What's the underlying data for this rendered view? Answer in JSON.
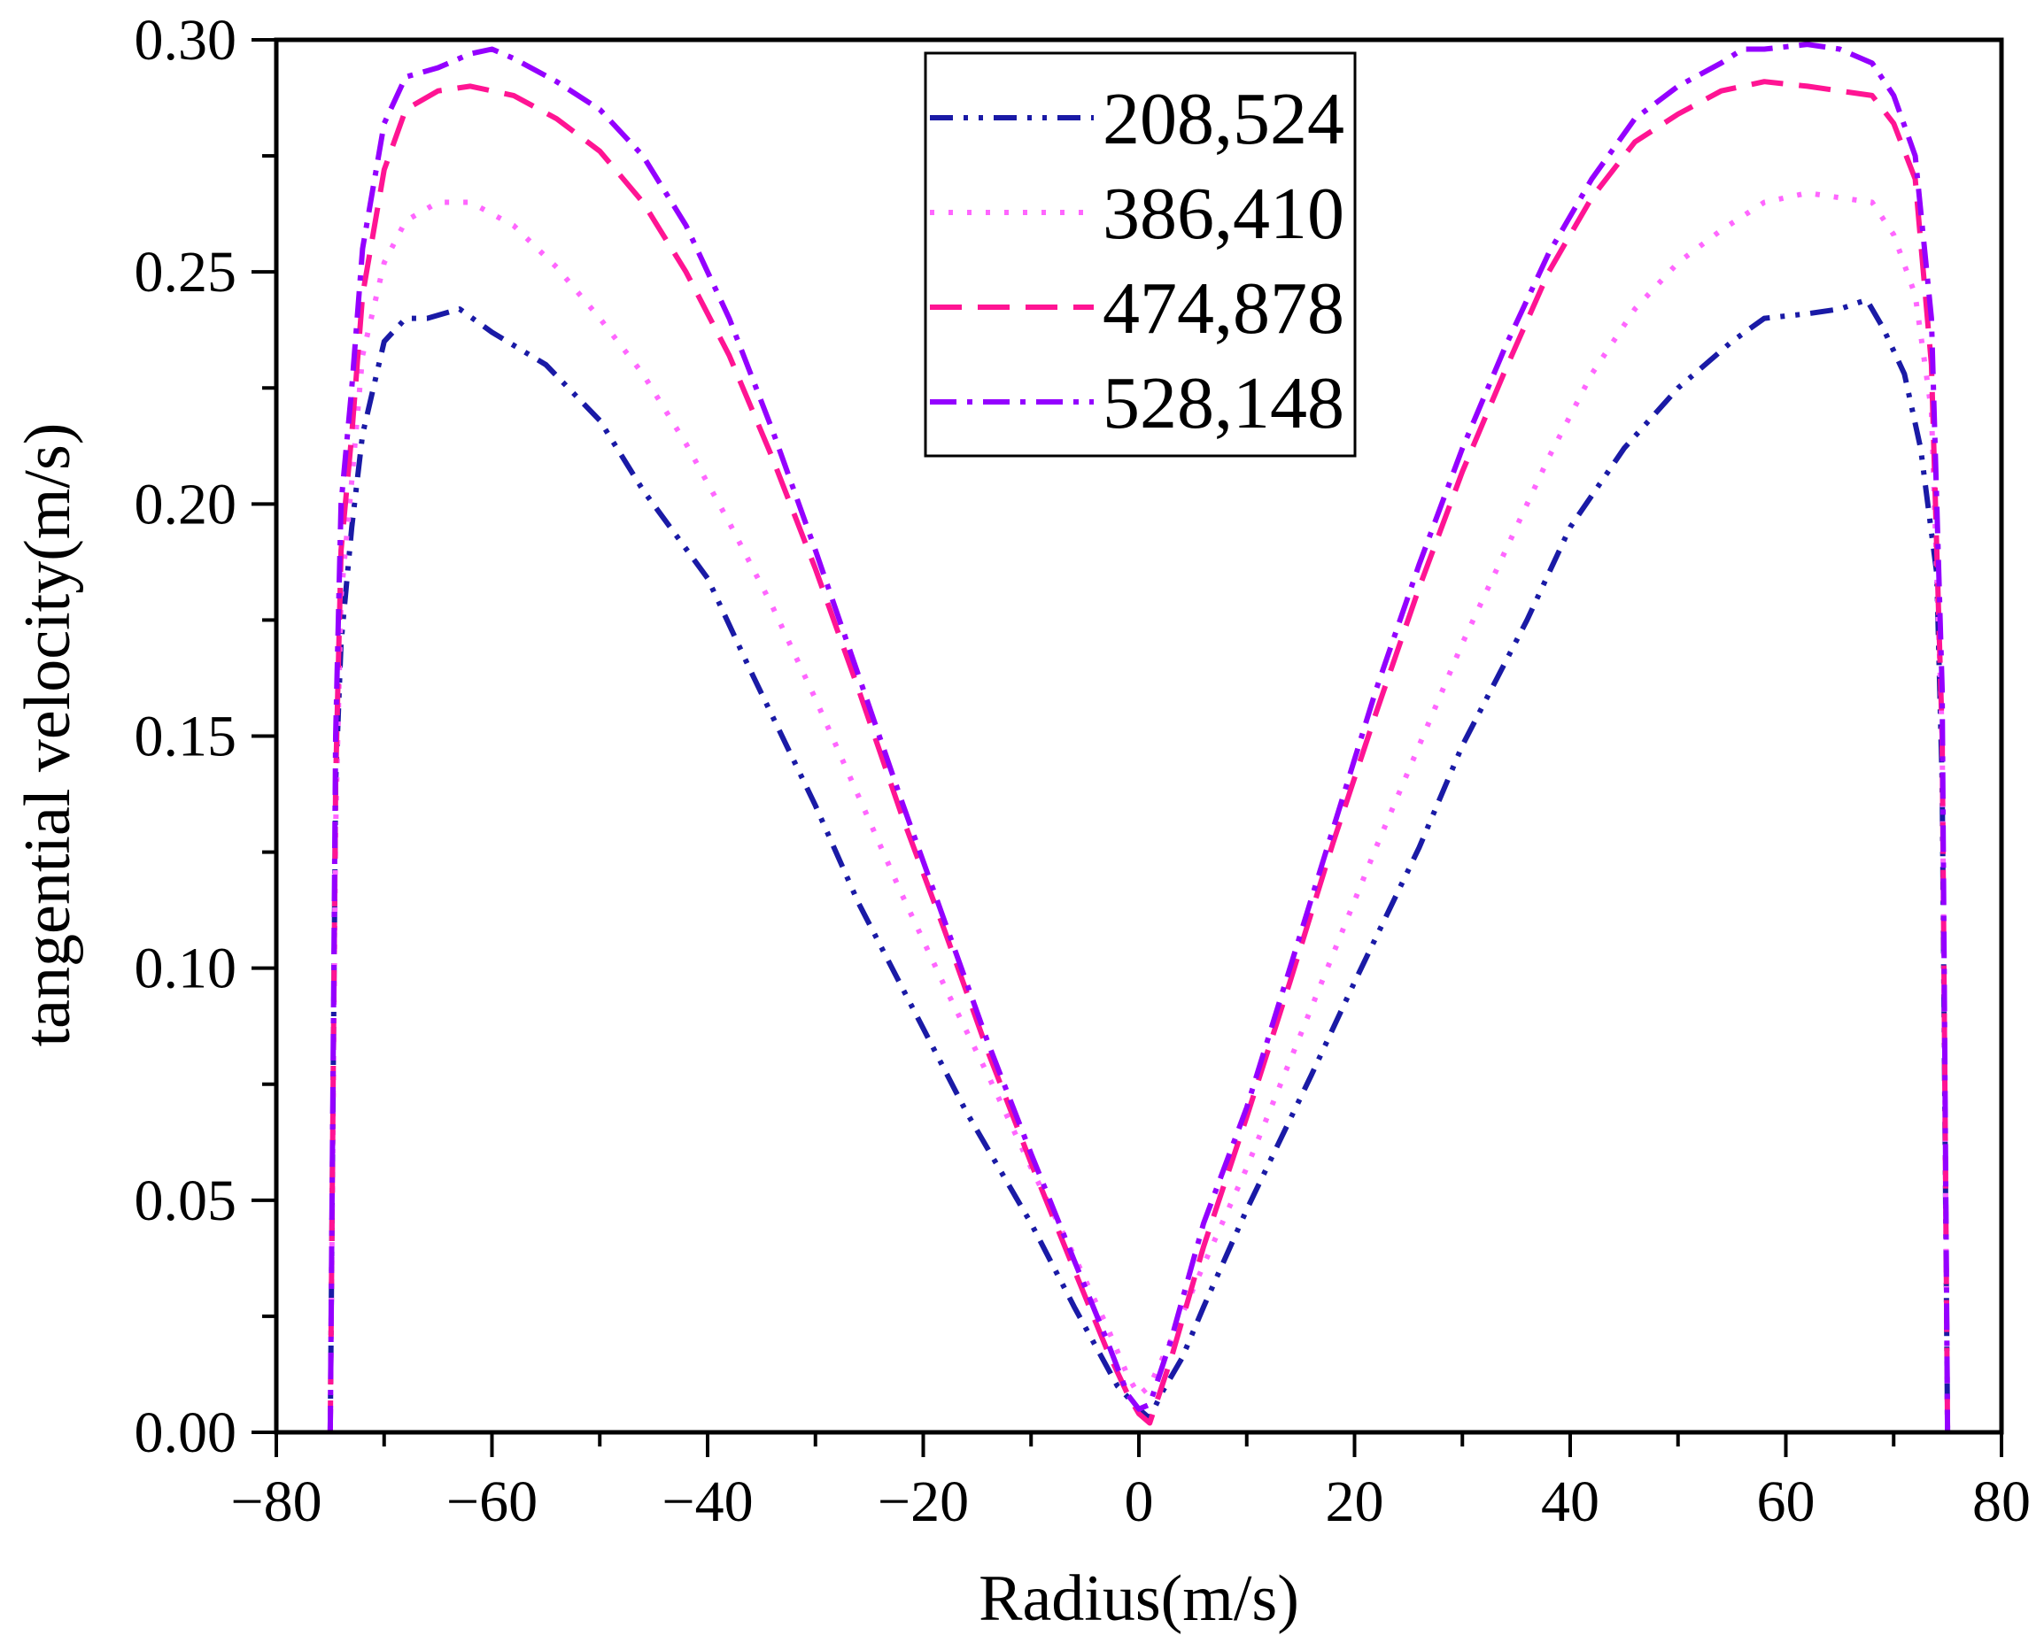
{
  "chart_data": {
    "type": "line",
    "title": "",
    "xlabel": "Radius(m/s)",
    "ylabel": "tangential velocity(m/s)",
    "xlim": [
      -80,
      80
    ],
    "ylim": [
      0.0,
      0.3
    ],
    "xticks": [
      -80,
      -60,
      -40,
      -20,
      0,
      20,
      40,
      60,
      80
    ],
    "xtick_labels": [
      "−80",
      "−60",
      "−40",
      "−20",
      "0",
      "20",
      "40",
      "60",
      "80"
    ],
    "yticks": [
      0.0,
      0.05,
      0.1,
      0.15,
      0.2,
      0.25,
      0.3
    ],
    "ytick_labels": [
      "0.00",
      "0.05",
      "0.10",
      "0.15",
      "0.20",
      "0.25",
      "0.30"
    ],
    "grid": false,
    "legend_position": "top-center",
    "series": [
      {
        "name": "208,524",
        "color": "#1a1aa6",
        "dash": "dash-dot-dot",
        "x": [
          -75,
          -74.5,
          -74,
          -73,
          -72,
          -70,
          -68,
          -66,
          -63,
          -60,
          -55,
          -50,
          -46,
          -40,
          -36,
          -30,
          -26,
          -20,
          -16,
          -10,
          -6,
          -2,
          0,
          1,
          2,
          4,
          6,
          10,
          16,
          20,
          26,
          30,
          36,
          40,
          45,
          50,
          55,
          58,
          62,
          65,
          67.5,
          69,
          71,
          72.5,
          74,
          74.5,
          75
        ],
        "y": [
          0.0,
          0.14,
          0.17,
          0.195,
          0.215,
          0.235,
          0.24,
          0.24,
          0.242,
          0.237,
          0.23,
          0.218,
          0.203,
          0.184,
          0.164,
          0.135,
          0.114,
          0.087,
          0.069,
          0.045,
          0.027,
          0.01,
          0.005,
          0.003,
          0.008,
          0.016,
          0.027,
          0.048,
          0.077,
          0.097,
          0.126,
          0.148,
          0.175,
          0.195,
          0.212,
          0.225,
          0.235,
          0.24,
          0.241,
          0.242,
          0.244,
          0.238,
          0.228,
          0.212,
          0.185,
          0.14,
          0.0
        ]
      },
      {
        "name": "386,410",
        "color": "#ff66ff",
        "dash": "dot",
        "x": [
          -75,
          -74.5,
          -74,
          -73,
          -72,
          -70,
          -68,
          -65,
          -62,
          -58,
          -54,
          -50,
          -46,
          -42,
          -38,
          -34,
          -30,
          -26,
          -22,
          -18,
          -14,
          -10,
          -6,
          -3,
          -1,
          0,
          1,
          3,
          6,
          10,
          14,
          18,
          22,
          26,
          30,
          34,
          38,
          42,
          46,
          50,
          54,
          58,
          62,
          65,
          68,
          70,
          72,
          73.5,
          74.5,
          75
        ],
        "y": [
          0.0,
          0.13,
          0.18,
          0.205,
          0.232,
          0.252,
          0.261,
          0.265,
          0.265,
          0.26,
          0.251,
          0.24,
          0.228,
          0.213,
          0.196,
          0.178,
          0.158,
          0.137,
          0.116,
          0.096,
          0.077,
          0.057,
          0.038,
          0.023,
          0.012,
          0.008,
          0.01,
          0.02,
          0.036,
          0.057,
          0.08,
          0.103,
          0.126,
          0.148,
          0.17,
          0.19,
          0.21,
          0.228,
          0.242,
          0.252,
          0.259,
          0.265,
          0.267,
          0.266,
          0.265,
          0.258,
          0.245,
          0.22,
          0.15,
          0.0
        ]
      },
      {
        "name": "474,878",
        "color": "#ff1493",
        "dash": "dash",
        "x": [
          -75,
          -74.5,
          -74,
          -73,
          -72,
          -70,
          -68,
          -65,
          -62,
          -58,
          -54,
          -50,
          -46,
          -42,
          -38,
          -34,
          -30,
          -26,
          -22,
          -18,
          -14,
          -10,
          -6,
          -3,
          -1,
          0,
          1,
          3,
          6,
          10,
          14,
          18,
          22,
          26,
          30,
          34,
          38,
          42,
          46,
          50,
          54,
          58,
          62,
          65,
          68,
          70,
          72,
          73.5,
          74.5,
          75
        ],
        "y": [
          0.0,
          0.14,
          0.19,
          0.215,
          0.245,
          0.272,
          0.285,
          0.289,
          0.29,
          0.288,
          0.283,
          0.276,
          0.265,
          0.25,
          0.232,
          0.21,
          0.186,
          0.16,
          0.133,
          0.108,
          0.082,
          0.058,
          0.035,
          0.018,
          0.008,
          0.004,
          0.002,
          0.016,
          0.04,
          0.068,
          0.097,
          0.127,
          0.155,
          0.182,
          0.207,
          0.229,
          0.25,
          0.266,
          0.278,
          0.284,
          0.289,
          0.291,
          0.29,
          0.289,
          0.288,
          0.282,
          0.27,
          0.23,
          0.15,
          0.0
        ]
      },
      {
        "name": "528,148",
        "color": "#9400ff",
        "dash": "dash-dot",
        "x": [
          -75,
          -74.5,
          -74,
          -73,
          -72,
          -70,
          -68,
          -65,
          -62,
          -60,
          -58,
          -54,
          -50,
          -46,
          -42,
          -38,
          -34,
          -30,
          -26,
          -22,
          -18,
          -14,
          -10,
          -6,
          -3,
          -1,
          0,
          1,
          3,
          6,
          10,
          14,
          18,
          22,
          26,
          30,
          34,
          38,
          42,
          46,
          50,
          54,
          56,
          58,
          62,
          65,
          68,
          70,
          72,
          73.5,
          74.5,
          75
        ],
        "y": [
          0.0,
          0.15,
          0.2,
          0.225,
          0.255,
          0.282,
          0.292,
          0.294,
          0.297,
          0.298,
          0.296,
          0.291,
          0.285,
          0.275,
          0.26,
          0.24,
          0.216,
          0.19,
          0.163,
          0.136,
          0.11,
          0.084,
          0.06,
          0.037,
          0.02,
          0.008,
          0.005,
          0.006,
          0.02,
          0.045,
          0.07,
          0.1,
          0.13,
          0.16,
          0.187,
          0.212,
          0.234,
          0.254,
          0.27,
          0.283,
          0.29,
          0.295,
          0.298,
          0.298,
          0.299,
          0.298,
          0.295,
          0.288,
          0.275,
          0.24,
          0.16,
          0.0
        ]
      }
    ]
  }
}
